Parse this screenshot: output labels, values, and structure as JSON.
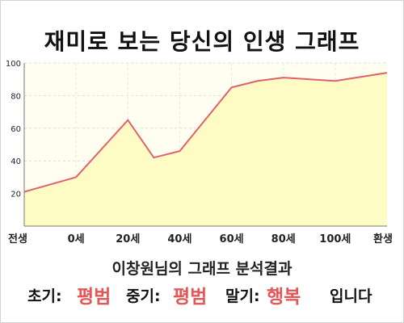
{
  "title": "재미로 보는 당신의 인생 그래프",
  "chart_data": {
    "type": "area",
    "categories": [
      "전생",
      "0세",
      "20세",
      "40세",
      "60세",
      "80세",
      "100세",
      "환생"
    ],
    "x": [
      -20,
      0,
      20,
      30,
      40,
      60,
      70,
      80,
      100,
      120
    ],
    "values": [
      21,
      30,
      65,
      42,
      46,
      85,
      89,
      91,
      89,
      94
    ],
    "yticks": [
      "20",
      "40",
      "60",
      "80",
      "100"
    ],
    "ylim": [
      0,
      100
    ],
    "grid": true,
    "line_color": "#e0616a",
    "fill_color": "#fffbc4"
  },
  "result": {
    "heading": "이창원님의 그래프 분석결과",
    "early_label": "초기:",
    "early_value": "평범",
    "mid_label": "중기:",
    "mid_value": "평범",
    "late_label": "말기:",
    "late_value": "행복",
    "ending": "입니다",
    "value_color": "#e55757"
  }
}
